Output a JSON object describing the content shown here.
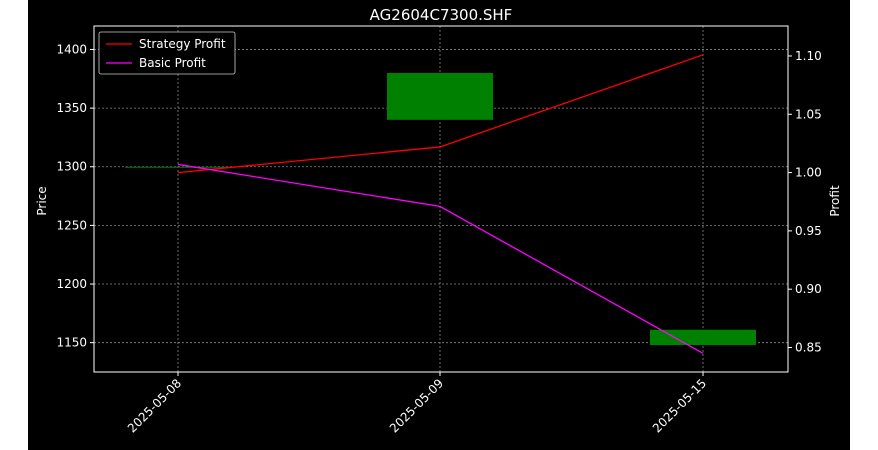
{
  "chart_data": {
    "type": "candlestick+line",
    "title": "AG2604C7300.SHF",
    "xlabel": "",
    "ylabel_left": "Price",
    "ylabel_right": "Profit",
    "categories": [
      "2025-05-08",
      "2025-05-09",
      "2025-05-15"
    ],
    "left_ticks": [
      1150,
      1200,
      1250,
      1300,
      1350,
      1400
    ],
    "right_ticks": [
      "0.85",
      "0.90",
      "0.95",
      "1.00",
      "1.05",
      "1.10"
    ],
    "ylim_left": [
      1125,
      1420
    ],
    "ylim_right": [
      0.829,
      1.1257
    ],
    "grid": true,
    "legend_position": "upper left",
    "candles": [
      {
        "date": "2025-05-08",
        "open": 1300,
        "high": 1300,
        "low": 1300,
        "close": 1300
      },
      {
        "date": "2025-05-09",
        "open": 1340,
        "high": 1380,
        "low": 1340,
        "close": 1380
      },
      {
        "date": "2025-05-15",
        "open": 1148,
        "high": 1161,
        "low": 1148,
        "close": 1161
      }
    ],
    "series": [
      {
        "name": "Strategy Profit",
        "color": "#ff0000",
        "values": [
          1.0,
          1.022,
          1.101
        ]
      },
      {
        "name": "Basic Profit",
        "color": "#ff00ff",
        "values": [
          1.007,
          0.971,
          0.845
        ]
      }
    ],
    "candle_color": "#008000",
    "tick_color": "#ffffff",
    "grid_color": "#888888"
  }
}
